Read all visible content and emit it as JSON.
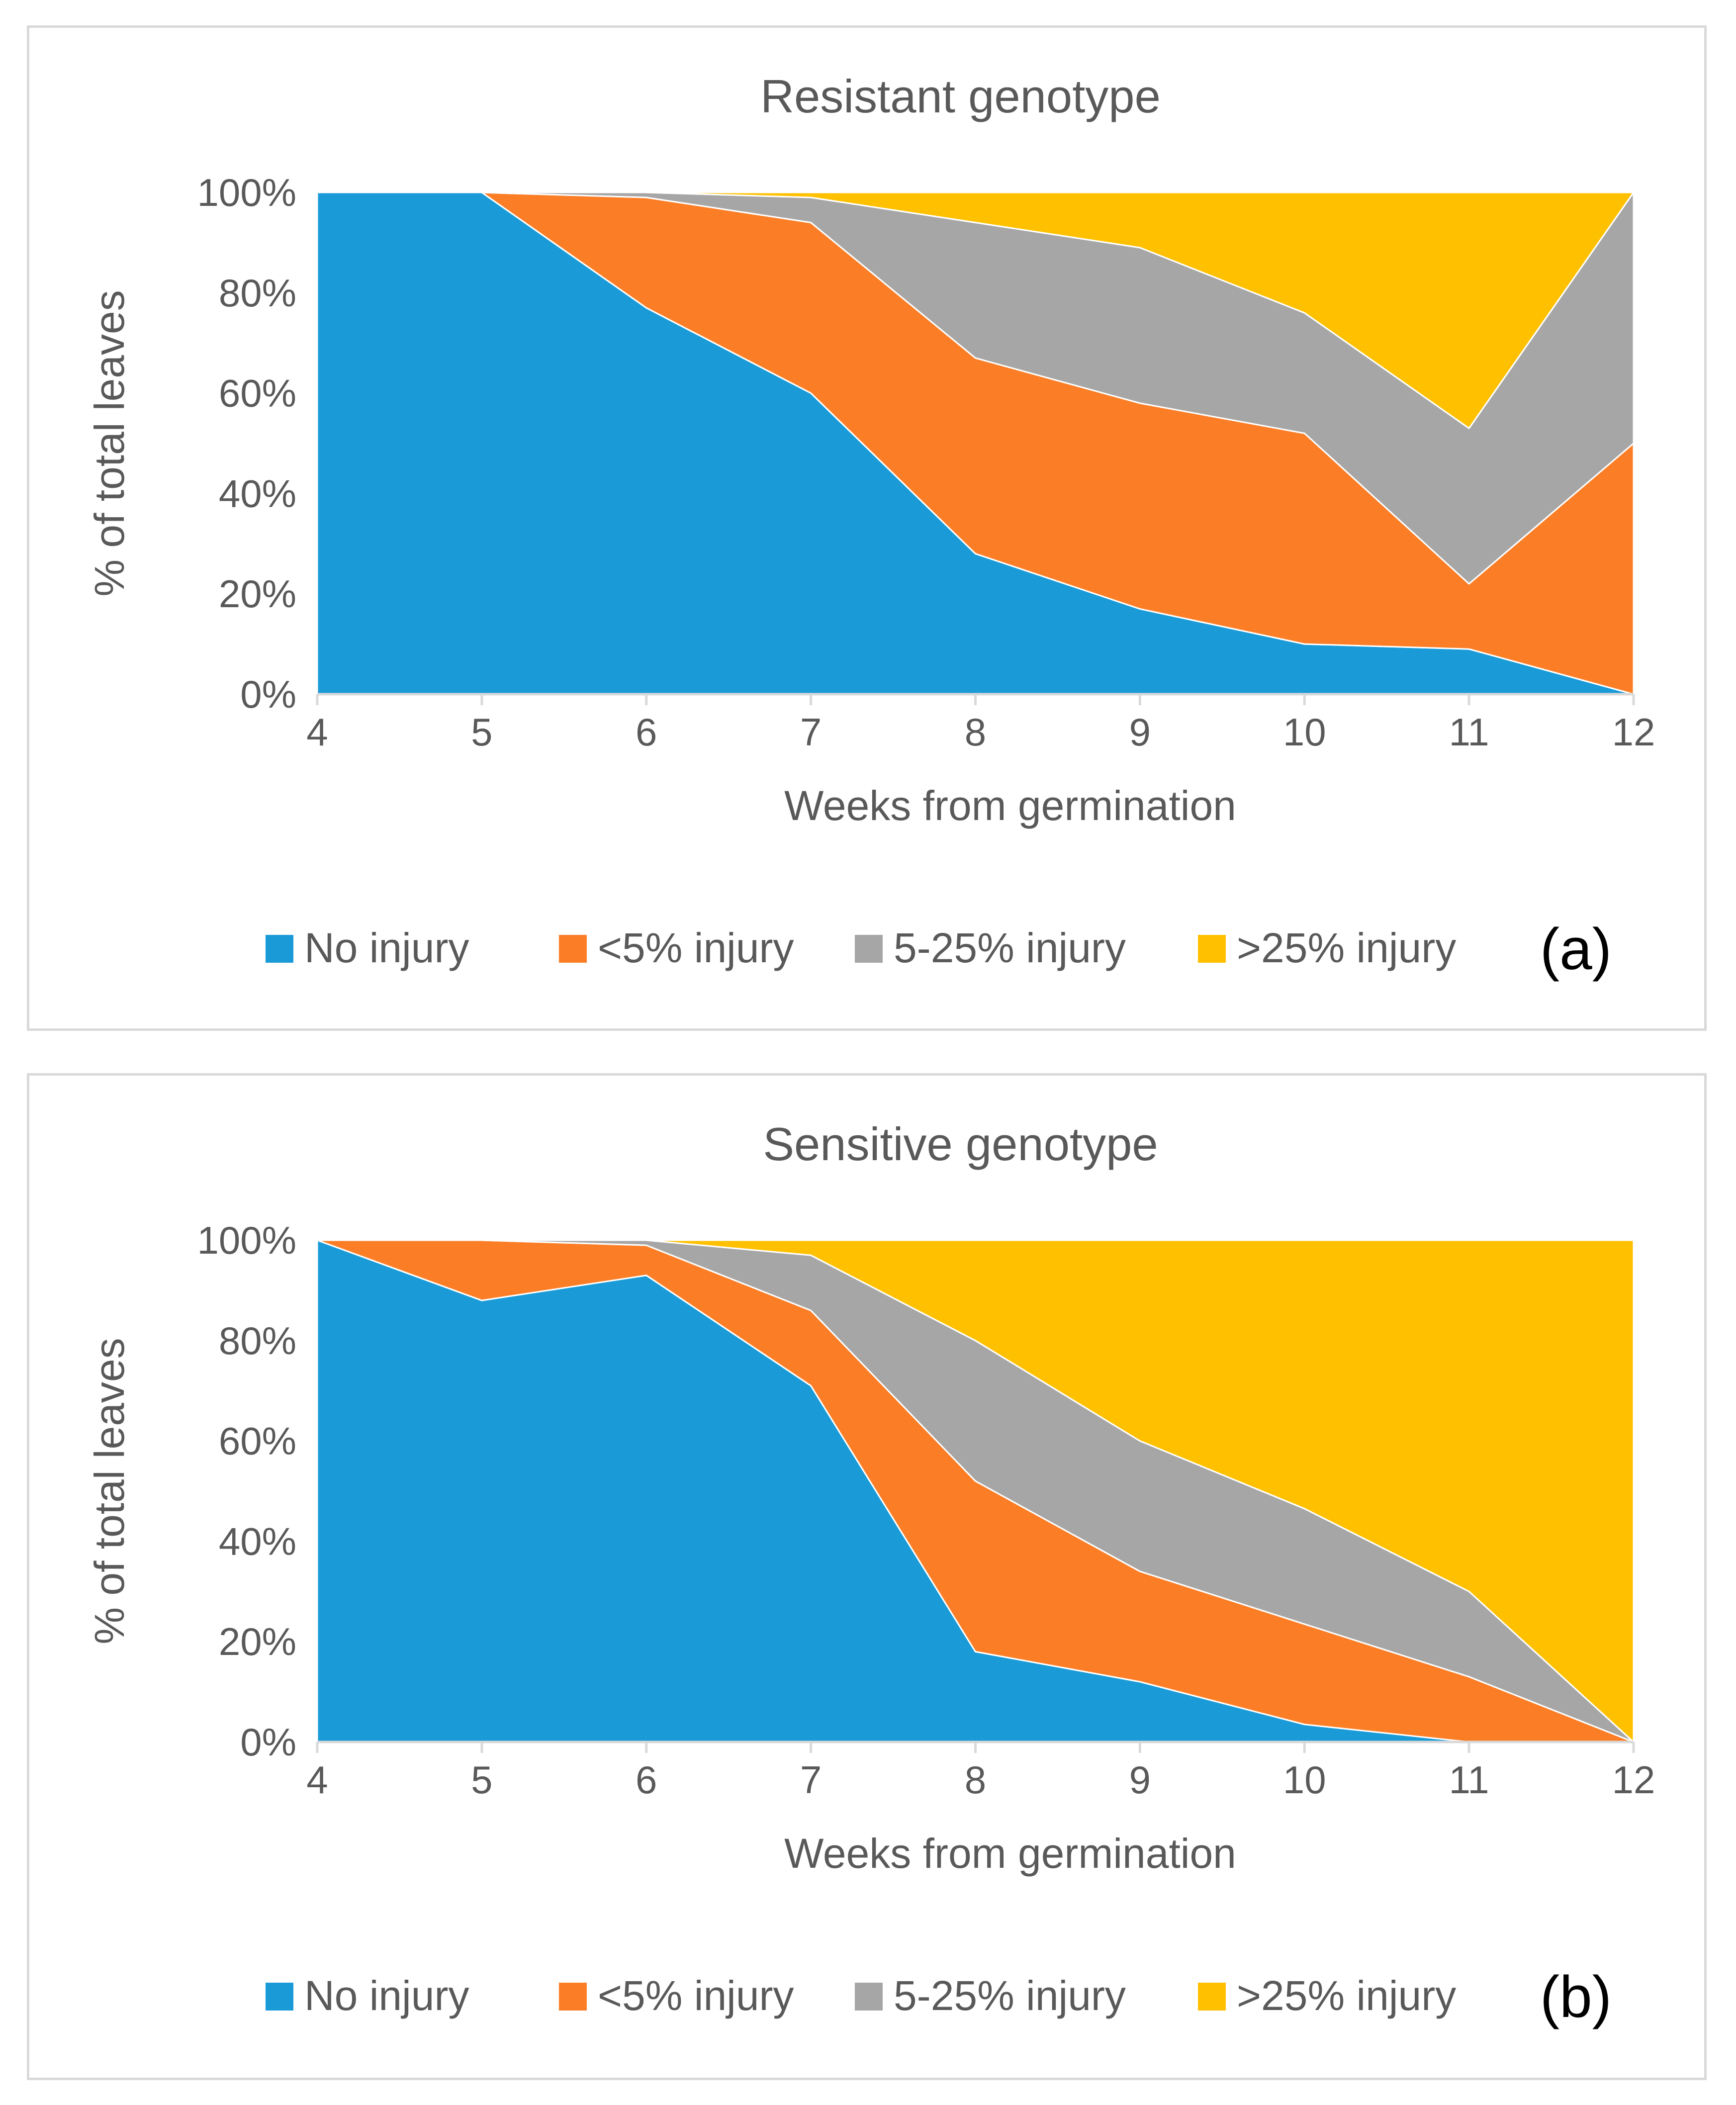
{
  "chart_data": [
    {
      "type": "area",
      "stacked": true,
      "title": "Resistant genotype",
      "xlabel": "Weeks from germination",
      "ylabel": "% of total leaves",
      "panel_label": "(a)",
      "x": [
        4,
        5,
        6,
        7,
        8,
        9,
        10,
        11,
        12
      ],
      "ylim": [
        0,
        100
      ],
      "yticks": [
        "0%",
        "20%",
        "40%",
        "60%",
        "80%",
        "100%"
      ],
      "grid": false,
      "legend_position": "bottom",
      "series": [
        {
          "name": "No injury",
          "color": "#1a9bd7",
          "values": [
            100,
            100,
            77,
            60,
            28,
            17,
            10,
            9,
            0
          ]
        },
        {
          "name": "<5% injury",
          "color": "#fb7e27",
          "values": [
            0,
            0,
            22,
            34,
            39,
            41,
            42,
            13,
            50
          ]
        },
        {
          "name": "5-25% injury",
          "color": "#a6a6a6",
          "values": [
            0,
            0,
            1,
            5,
            27,
            31,
            24,
            31,
            50
          ]
        },
        {
          "name": ">25% injury",
          "color": "#ffc000",
          "values": [
            0,
            0,
            0,
            1,
            6,
            11,
            24,
            47,
            0
          ]
        }
      ]
    },
    {
      "type": "area",
      "stacked": true,
      "title": "Sensitive genotype",
      "xlabel": "Weeks from germination",
      "ylabel": "% of total leaves",
      "panel_label": "(b)",
      "x": [
        4,
        5,
        6,
        7,
        8,
        9,
        10,
        11,
        12
      ],
      "ylim": [
        0,
        100
      ],
      "yticks": [
        "0%",
        "20%",
        "40%",
        "60%",
        "80%",
        "100%"
      ],
      "grid": false,
      "legend_position": "bottom",
      "series": [
        {
          "name": "No injury",
          "color": "#1a9bd7",
          "values": [
            100,
            88,
            93,
            71,
            18,
            12,
            3.5,
            0,
            0
          ]
        },
        {
          "name": "<5% injury",
          "color": "#fb7e27",
          "values": [
            0,
            12,
            6,
            15,
            34,
            22,
            20,
            13,
            0
          ]
        },
        {
          "name": "5-25% injury",
          "color": "#a6a6a6",
          "values": [
            0,
            0,
            1,
            11,
            28,
            26,
            23,
            17,
            0
          ]
        },
        {
          "name": ">25% injury",
          "color": "#ffc000",
          "values": [
            0,
            0,
            0,
            3,
            20,
            40,
            53.5,
            70,
            100
          ]
        }
      ]
    }
  ]
}
